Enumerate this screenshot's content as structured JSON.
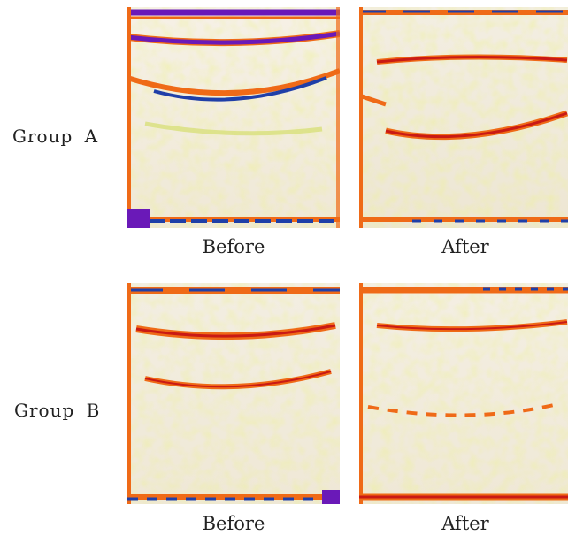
{
  "figure": {
    "groups": [
      {
        "label": "Group  A",
        "panels": [
          {
            "caption": "Before",
            "heatmap": "thermal-rainbow",
            "depicted_layers": 4
          },
          {
            "caption": "After",
            "heatmap": "thermal-rainbow",
            "depicted_layers": 3
          }
        ]
      },
      {
        "label": "Group  B",
        "panels": [
          {
            "caption": "Before",
            "heatmap": "thermal-rainbow",
            "depicted_layers": 3
          },
          {
            "caption": "After",
            "heatmap": "thermal-rainbow",
            "depicted_layers": 3
          }
        ]
      }
    ],
    "colors": {
      "background": "#f4efe3",
      "low": "#d8e07a",
      "mid": "#ef6a17",
      "high": "#c91a14",
      "peak": "#1f3fa8",
      "max": "#6a19b8"
    }
  }
}
